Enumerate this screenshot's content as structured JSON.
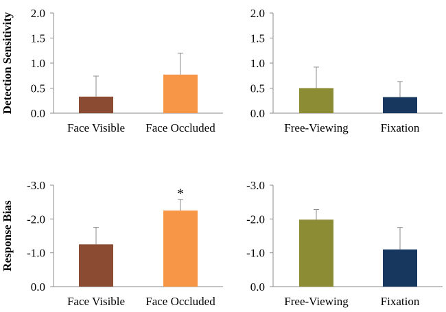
{
  "chart_data": [
    {
      "type": "bar",
      "panel": "top-left",
      "ylabel": "Detection Sensitivity",
      "categories": [
        "Face Visible",
        "Face Occluded"
      ],
      "values": [
        0.33,
        0.77
      ],
      "errors": [
        0.41,
        0.43
      ],
      "colors": [
        "#8B4A32",
        "#F79646"
      ],
      "ylim": [
        0,
        2.0
      ],
      "yticks": [
        "0.0",
        "0.5",
        "1.0",
        "1.5",
        "2.0"
      ],
      "annotations": [
        "",
        ""
      ]
    },
    {
      "type": "bar",
      "panel": "top-right",
      "ylabel": "",
      "categories": [
        "Free-Viewing",
        "Fixation"
      ],
      "values": [
        0.5,
        0.32
      ],
      "errors": [
        0.42,
        0.31
      ],
      "colors": [
        "#8C8C34",
        "#17375E"
      ],
      "ylim": [
        0,
        2.0
      ],
      "yticks": [
        "0.0",
        "0.5",
        "1.0",
        "1.5",
        "2.0"
      ],
      "annotations": [
        "",
        ""
      ]
    },
    {
      "type": "bar",
      "panel": "bottom-left",
      "ylabel": "Response Bias",
      "categories": [
        "Face Visible",
        "Face Occluded"
      ],
      "values": [
        -1.25,
        -2.25
      ],
      "errors": [
        0.5,
        0.33
      ],
      "colors": [
        "#8B4A32",
        "#F79646"
      ],
      "ylim": [
        0,
        -3.0
      ],
      "yticks": [
        "0.0",
        "-1.0",
        "-2.0",
        "-3.0"
      ],
      "annotations": [
        "",
        "*"
      ]
    },
    {
      "type": "bar",
      "panel": "bottom-right",
      "ylabel": "",
      "categories": [
        "Free-Viewing",
        "Fixation"
      ],
      "values": [
        -1.98,
        -1.1
      ],
      "errors": [
        0.3,
        0.65
      ],
      "colors": [
        "#8C8C34",
        "#17375E"
      ],
      "ylim": [
        0,
        -3.0
      ],
      "yticks": [
        "0.0",
        "-1.0",
        "-2.0",
        "-3.0"
      ],
      "annotations": [
        "",
        ""
      ]
    }
  ]
}
